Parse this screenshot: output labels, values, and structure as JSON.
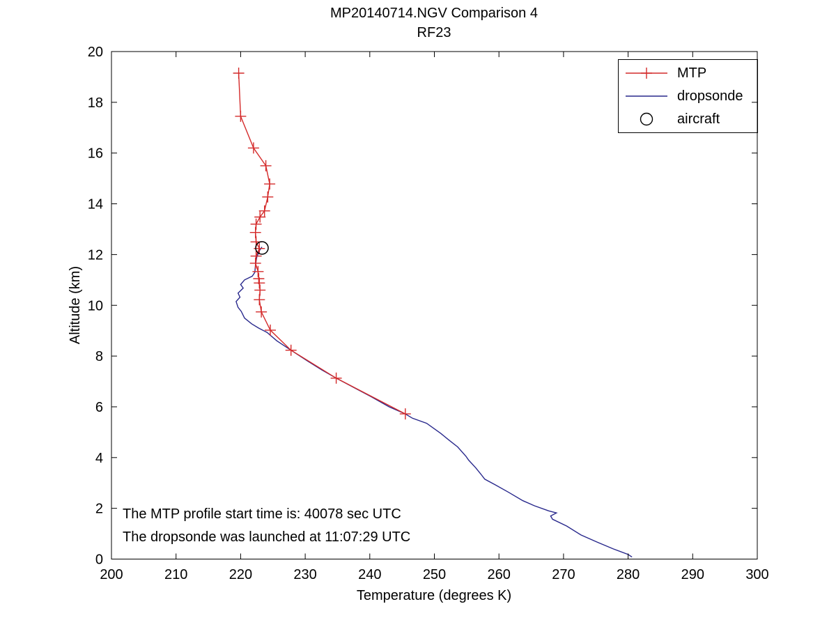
{
  "header": {
    "title": "MP20140714.NGV Comparison 4",
    "subtitle": "RF23"
  },
  "axes": {
    "xlabel": "Temperature (degrees K)",
    "ylabel": "Altitude (km)"
  },
  "annotations": {
    "line1": "The MTP profile start time is: 40078 sec UTC",
    "line2": "The dropsonde was launched at 11:07:29 UTC"
  },
  "legend": {
    "items": [
      {
        "label": "MTP",
        "type": "line-plus",
        "color": "#d42a2a"
      },
      {
        "label": "dropsonde",
        "type": "line",
        "color": "#28288c"
      },
      {
        "label": "aircraft",
        "type": "circle",
        "color": "#000000"
      }
    ]
  },
  "chart_data": {
    "type": "line",
    "title": "MP20140714.NGV Comparison 4",
    "subtitle": "RF23",
    "xlabel": "Temperature (degrees K)",
    "ylabel": "Altitude (km)",
    "xlim": [
      200,
      300
    ],
    "ylim": [
      0,
      20
    ],
    "xticks": [
      200,
      210,
      220,
      230,
      240,
      250,
      260,
      270,
      280,
      290,
      300
    ],
    "yticks": [
      0,
      2,
      4,
      6,
      8,
      10,
      12,
      14,
      16,
      18,
      20
    ],
    "grid": false,
    "legend_position": "upper-right",
    "series": [
      {
        "name": "MTP",
        "color": "#d42a2a",
        "marker": "plus",
        "line": true,
        "zorder": 2,
        "points": [
          [
            219.7,
            19.15
          ],
          [
            220.0,
            17.45
          ],
          [
            222.0,
            16.2
          ],
          [
            223.9,
            15.5
          ],
          [
            224.5,
            14.78
          ],
          [
            224.2,
            14.27
          ],
          [
            223.7,
            13.72
          ],
          [
            223.0,
            13.48
          ],
          [
            222.4,
            13.2
          ],
          [
            222.3,
            12.87
          ],
          [
            222.4,
            12.5
          ],
          [
            222.9,
            12.24
          ],
          [
            222.4,
            11.94
          ],
          [
            222.3,
            11.66
          ],
          [
            222.7,
            11.33
          ],
          [
            222.8,
            11.05
          ],
          [
            222.9,
            10.88
          ],
          [
            223.0,
            10.6
          ],
          [
            222.9,
            10.22
          ],
          [
            223.2,
            9.74
          ],
          [
            224.6,
            9.02
          ],
          [
            227.8,
            8.23
          ],
          [
            234.8,
            7.13
          ],
          [
            245.5,
            5.72
          ]
        ]
      },
      {
        "name": "dropsonde",
        "color": "#28288c",
        "marker": "none",
        "line": true,
        "zorder": 1,
        "points": [
          [
            223.3,
            12.3
          ],
          [
            222.9,
            12.15
          ],
          [
            222.5,
            11.9
          ],
          [
            222.3,
            11.6
          ],
          [
            222.2,
            11.3
          ],
          [
            221.8,
            11.15
          ],
          [
            220.6,
            11.0
          ],
          [
            220.0,
            10.82
          ],
          [
            220.4,
            10.68
          ],
          [
            219.6,
            10.48
          ],
          [
            219.9,
            10.32
          ],
          [
            219.3,
            10.15
          ],
          [
            219.6,
            9.92
          ],
          [
            220.1,
            9.76
          ],
          [
            220.6,
            9.5
          ],
          [
            221.7,
            9.27
          ],
          [
            222.8,
            9.1
          ],
          [
            224.1,
            8.93
          ],
          [
            225.6,
            8.6
          ],
          [
            227.8,
            8.23
          ],
          [
            230.4,
            7.8
          ],
          [
            232.6,
            7.45
          ],
          [
            234.8,
            7.13
          ],
          [
            237.6,
            6.75
          ],
          [
            240.2,
            6.4
          ],
          [
            243.0,
            6.0
          ],
          [
            245.5,
            5.72
          ],
          [
            246.6,
            5.55
          ],
          [
            248.8,
            5.35
          ],
          [
            251.0,
            4.95
          ],
          [
            252.1,
            4.72
          ],
          [
            253.6,
            4.42
          ],
          [
            254.9,
            4.05
          ],
          [
            255.3,
            3.9
          ],
          [
            256.4,
            3.6
          ],
          [
            257.2,
            3.35
          ],
          [
            257.8,
            3.15
          ],
          [
            259.4,
            2.93
          ],
          [
            261.5,
            2.63
          ],
          [
            263.7,
            2.3
          ],
          [
            265.5,
            2.1
          ],
          [
            267.7,
            1.9
          ],
          [
            268.9,
            1.82
          ],
          [
            268.0,
            1.7
          ],
          [
            268.3,
            1.57
          ],
          [
            270.5,
            1.3
          ],
          [
            272.7,
            0.95
          ],
          [
            275.2,
            0.67
          ],
          [
            277.7,
            0.4
          ],
          [
            280.0,
            0.18
          ],
          [
            280.6,
            0.08
          ]
        ]
      },
      {
        "name": "aircraft",
        "color": "#000000",
        "marker": "circle",
        "line": false,
        "zorder": 3,
        "points": [
          [
            223.3,
            12.26
          ]
        ]
      }
    ]
  }
}
